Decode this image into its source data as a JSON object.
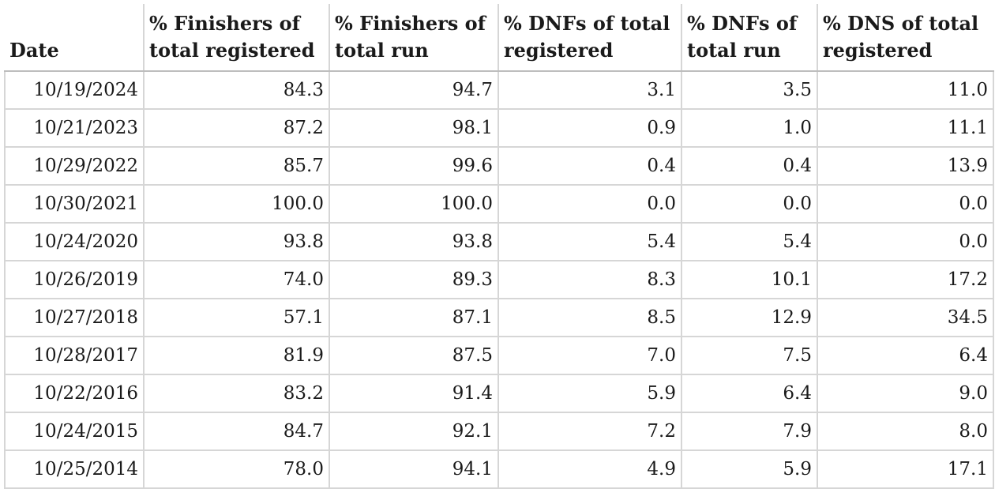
{
  "table": {
    "headers": [
      "Date",
      "% Finishers of total registered",
      "% Finishers of total run",
      "% DNFs of total registered",
      "% DNFs of total run",
      "% DNS of total registered"
    ],
    "rows": [
      [
        "10/19/2024",
        "84.3",
        "94.7",
        "3.1",
        "3.5",
        "11.0"
      ],
      [
        "10/21/2023",
        "87.2",
        "98.1",
        "0.9",
        "1.0",
        "11.1"
      ],
      [
        "10/29/2022",
        "85.7",
        "99.6",
        "0.4",
        "0.4",
        "13.9"
      ],
      [
        "10/30/2021",
        "100.0",
        "100.0",
        "0.0",
        "0.0",
        "0.0"
      ],
      [
        "10/24/2020",
        "93.8",
        "93.8",
        "5.4",
        "5.4",
        "0.0"
      ],
      [
        "10/26/2019",
        "74.0",
        "89.3",
        "8.3",
        "10.1",
        "17.2"
      ],
      [
        "10/27/2018",
        "57.1",
        "87.1",
        "8.5",
        "12.9",
        "34.5"
      ],
      [
        "10/28/2017",
        "81.9",
        "87.5",
        "7.0",
        "7.5",
        "6.4"
      ],
      [
        "10/22/2016",
        "83.2",
        "91.4",
        "5.9",
        "6.4",
        "9.0"
      ],
      [
        "10/24/2015",
        "84.7",
        "92.1",
        "7.2",
        "7.9",
        "8.0"
      ],
      [
        "10/25/2014",
        "78.0",
        "94.1",
        "4.9",
        "5.9",
        "17.1"
      ]
    ]
  }
}
